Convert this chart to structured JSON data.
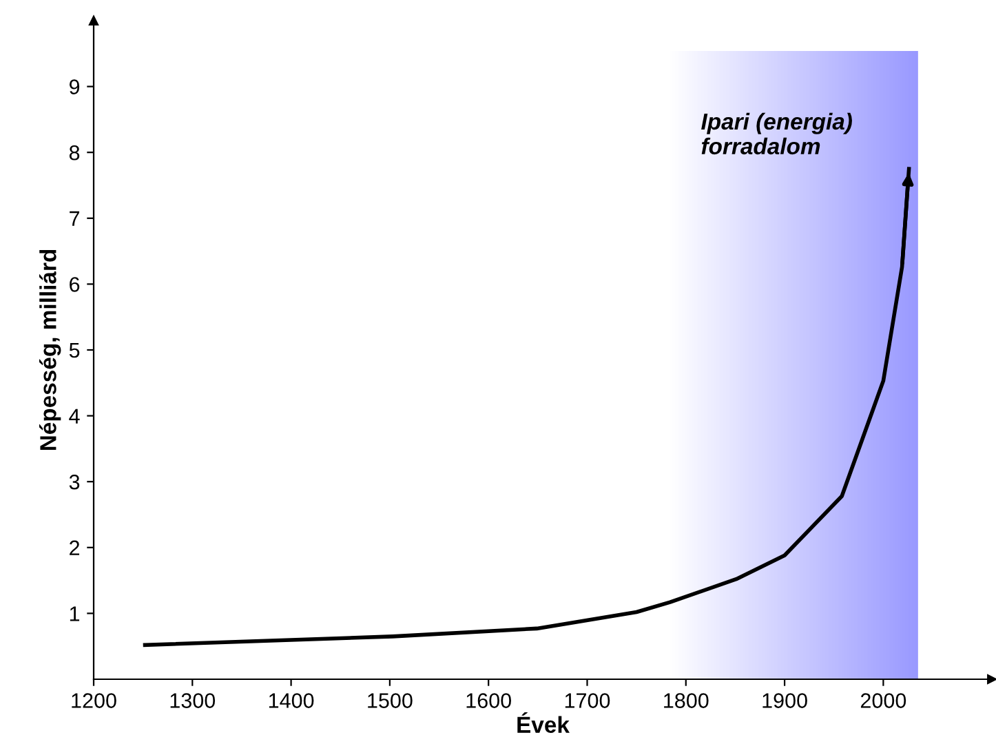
{
  "chart_data": {
    "type": "line",
    "xlabel": "Évek",
    "ylabel": "Népesség, milliárd",
    "x": [
      1252,
      1503,
      1649,
      1750,
      1784,
      1851,
      1900,
      1958,
      2000,
      2019,
      2026
    ],
    "series": [
      {
        "color": "#000000",
        "values": [
          0.52,
          0.65,
          0.77,
          1.02,
          1.17,
          1.52,
          1.88,
          2.78,
          4.53,
          6.26,
          7.75
        ]
      }
    ],
    "xlim": [
      1200,
      2110
    ],
    "ylim": [
      0,
      10
    ],
    "xticks": [
      1200,
      1300,
      1400,
      1500,
      1600,
      1700,
      1800,
      1900,
      2000
    ],
    "yticks": [
      1,
      2,
      3,
      4,
      5,
      6,
      7,
      8,
      9
    ],
    "bands": [
      {
        "axis": "x",
        "from": 1784,
        "to": 2035,
        "color": "#9999ff"
      }
    ],
    "annotations": [
      "Ipari (energia)\nforradalom"
    ],
    "grid": false,
    "legend": false,
    "marker": "none",
    "line_style": "solid"
  }
}
